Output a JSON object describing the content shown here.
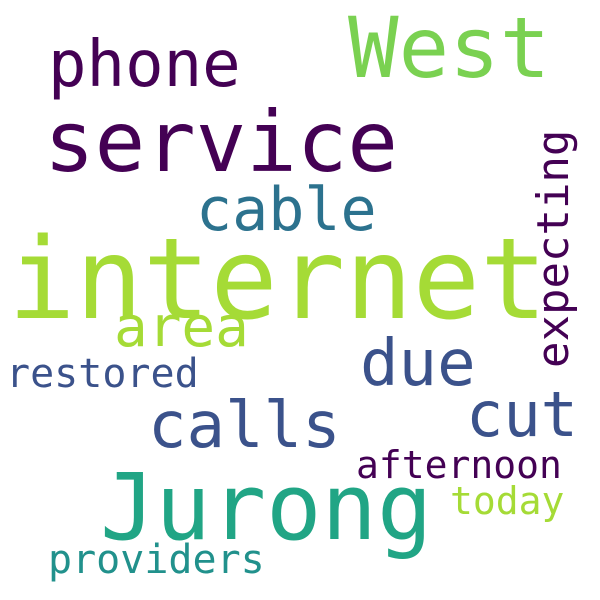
{
  "words": [
    {
      "text": "internet",
      "color": "#a5db36"
    },
    {
      "text": "service",
      "color": "#440154"
    },
    {
      "text": "Jurong",
      "color": "#21a585"
    },
    {
      "text": "West",
      "color": "#7ad151"
    },
    {
      "text": "phone",
      "color": "#440154"
    },
    {
      "text": "cable",
      "color": "#2c728e"
    },
    {
      "text": "area",
      "color": "#a5db36"
    },
    {
      "text": "due",
      "color": "#3b528b"
    },
    {
      "text": "calls",
      "color": "#3b528b"
    },
    {
      "text": "cut",
      "color": "#3b528b"
    },
    {
      "text": "expecting",
      "color": "#440154"
    },
    {
      "text": "restored",
      "color": "#3b528b"
    },
    {
      "text": "afternoon",
      "color": "#440154"
    },
    {
      "text": "today",
      "color": "#a5db36"
    },
    {
      "text": "providers",
      "color": "#21918c"
    }
  ]
}
